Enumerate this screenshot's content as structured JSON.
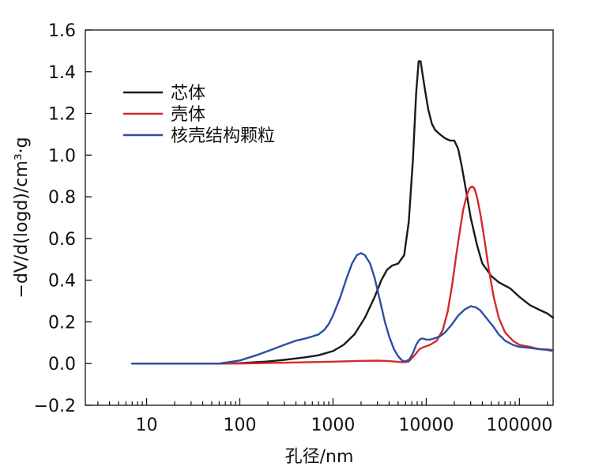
{
  "chart_data": {
    "type": "line",
    "xlabel": "孔径/nm",
    "ylabel": "−dV/d(logd)/cm³·g",
    "xscale": "log",
    "xlim": [
      2.2,
      230000
    ],
    "ylim": [
      -0.2,
      1.6
    ],
    "x_ticks": [
      10,
      100,
      1000,
      10000,
      100000
    ],
    "x_tick_labels": [
      "10",
      "100",
      "1000",
      "10000",
      "100000"
    ],
    "y_ticks": [
      -0.2,
      0.0,
      0.2,
      0.4,
      0.6,
      0.8,
      1.0,
      1.2,
      1.4,
      1.6
    ],
    "y_tick_labels": [
      "−0.2",
      "0.0",
      "0.2",
      "0.4",
      "0.6",
      "0.8",
      "1.0",
      "1.2",
      "1.4",
      "1.6"
    ],
    "grid": false,
    "legend_position": "top-left",
    "series": [
      {
        "name": "芯体",
        "color": "#1a1a1a",
        "x": [
          7,
          20,
          60,
          100,
          200,
          300,
          500,
          700,
          1000,
          1300,
          1700,
          2200,
          2800,
          3300,
          3800,
          4300,
          5000,
          5800,
          6500,
          7200,
          7800,
          8300,
          8700,
          9200,
          9800,
          10500,
          11500,
          12500,
          14000,
          16000,
          18000,
          20000,
          22000,
          24000,
          27000,
          30000,
          35000,
          40000,
          50000,
          60000,
          80000,
          100000,
          130000,
          160000,
          200000,
          230000
        ],
        "y": [
          0.0,
          0.0,
          0.0,
          0.002,
          0.01,
          0.018,
          0.03,
          0.04,
          0.06,
          0.09,
          0.14,
          0.22,
          0.32,
          0.4,
          0.45,
          0.47,
          0.48,
          0.52,
          0.68,
          0.98,
          1.3,
          1.45,
          1.45,
          1.38,
          1.3,
          1.22,
          1.15,
          1.12,
          1.1,
          1.08,
          1.07,
          1.07,
          1.03,
          0.95,
          0.82,
          0.7,
          0.57,
          0.48,
          0.42,
          0.39,
          0.36,
          0.32,
          0.28,
          0.26,
          0.24,
          0.22
        ]
      },
      {
        "name": "壳体",
        "color": "#d42a2a",
        "x": [
          7,
          100,
          500,
          1000,
          2000,
          3000,
          4000,
          5000,
          5800,
          6500,
          7500,
          8500,
          9500,
          11000,
          13000,
          15000,
          17000,
          19000,
          21000,
          23000,
          25000,
          27000,
          29000,
          31000,
          33000,
          35000,
          38000,
          42000,
          47000,
          53000,
          60000,
          70000,
          85000,
          100000,
          130000,
          160000,
          200000,
          230000
        ],
        "y": [
          0.0,
          0.0,
          0.006,
          0.009,
          0.013,
          0.014,
          0.012,
          0.008,
          0.006,
          0.01,
          0.04,
          0.07,
          0.08,
          0.09,
          0.11,
          0.16,
          0.25,
          0.38,
          0.52,
          0.64,
          0.74,
          0.8,
          0.84,
          0.85,
          0.84,
          0.8,
          0.72,
          0.6,
          0.45,
          0.32,
          0.22,
          0.15,
          0.11,
          0.09,
          0.08,
          0.07,
          0.065,
          0.06
        ]
      },
      {
        "name": "核壳结构颗粒",
        "color": "#2c4ea3",
        "x": [
          7,
          20,
          60,
          100,
          150,
          200,
          300,
          400,
          500,
          600,
          700,
          800,
          900,
          1000,
          1200,
          1400,
          1600,
          1800,
          2000,
          2200,
          2500,
          2800,
          3200,
          3600,
          4000,
          4500,
          5000,
          5500,
          6000,
          6600,
          7200,
          7800,
          8300,
          8800,
          9300,
          10000,
          11000,
          12000,
          14000,
          16000,
          19000,
          22000,
          26000,
          30000,
          34000,
          38000,
          44000,
          52000,
          60000,
          70000,
          85000,
          100000,
          130000,
          160000,
          200000,
          230000
        ],
        "y": [
          0.0,
          0.0,
          0.0,
          0.015,
          0.04,
          0.06,
          0.09,
          0.11,
          0.12,
          0.13,
          0.14,
          0.16,
          0.19,
          0.23,
          0.32,
          0.41,
          0.48,
          0.52,
          0.53,
          0.52,
          0.48,
          0.41,
          0.3,
          0.2,
          0.13,
          0.07,
          0.035,
          0.015,
          0.01,
          0.02,
          0.05,
          0.09,
          0.11,
          0.12,
          0.12,
          0.115,
          0.115,
          0.12,
          0.13,
          0.15,
          0.19,
          0.23,
          0.26,
          0.275,
          0.27,
          0.255,
          0.22,
          0.18,
          0.14,
          0.11,
          0.09,
          0.08,
          0.075,
          0.07,
          0.067,
          0.065
        ]
      }
    ]
  }
}
